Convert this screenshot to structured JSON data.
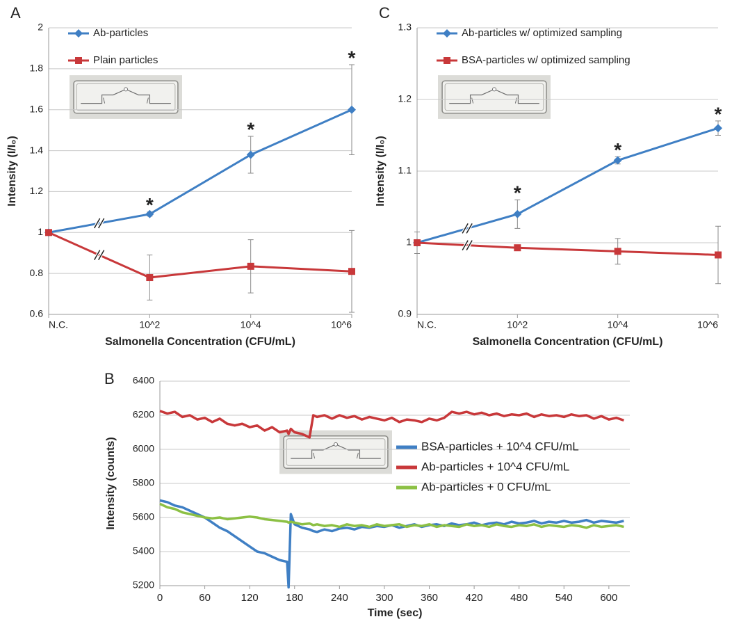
{
  "chart_data": [
    {
      "type": "line",
      "label": "A",
      "xlabel": "Salmonella Concentration (CFU/mL)",
      "ylabel": "Intensity (I/I₀)",
      "categories": [
        "N.C.",
        "10^2",
        "10^4",
        "10^6"
      ],
      "ylim": [
        0.6,
        2
      ],
      "yticks": [
        0.6,
        0.8,
        1,
        1.2,
        1.4,
        1.6,
        1.8,
        2
      ],
      "grid": true,
      "legend": "upper left",
      "series": [
        {
          "name": "Ab-particles",
          "color": "#3f7fc4",
          "marker": "diamond",
          "values": [
            1,
            1.09,
            1.38,
            1.6
          ],
          "errors": [
            null,
            0.01,
            0.09,
            0.22
          ]
        },
        {
          "name": "Plain particles",
          "color": "#c8383a",
          "marker": "square",
          "values": [
            1,
            0.78,
            0.835,
            0.81
          ],
          "errors": [
            null,
            0.11,
            0.13,
            0.2
          ]
        }
      ],
      "annotations": [
        "*",
        "*",
        "*"
      ]
    },
    {
      "type": "line",
      "label": "C",
      "xlabel": "Salmonella Concentration (CFU/mL)",
      "ylabel": "Intensity (I/I₀)",
      "categories": [
        "N.C.",
        "10^2",
        "10^4",
        "10^6"
      ],
      "ylim": [
        0.9,
        1.3
      ],
      "yticks": [
        0.9,
        1,
        1.1,
        1.2,
        1.3
      ],
      "grid": true,
      "legend": "upper left",
      "series": [
        {
          "name": "Ab-particles w/ optimized sampling",
          "color": "#3f7fc4",
          "marker": "diamond",
          "values": [
            1,
            1.04,
            1.115,
            1.16
          ],
          "errors": [
            0.015,
            0.02,
            0.005,
            0.01
          ]
        },
        {
          "name": "BSA-particles w/ optimized sampling",
          "color": "#c8383a",
          "marker": "square",
          "values": [
            1,
            0.993,
            0.988,
            0.983
          ],
          "errors": [
            0.015,
            0.003,
            0.018,
            0.04
          ]
        }
      ],
      "annotations": [
        "*",
        "*",
        "*"
      ]
    },
    {
      "type": "timeseries",
      "label": "B",
      "xlabel": "Time (sec)",
      "ylabel": "Intensity (counts)",
      "x": [
        0,
        10,
        20,
        30,
        40,
        50,
        60,
        70,
        80,
        90,
        100,
        110,
        120,
        130,
        140,
        150,
        160,
        170,
        172,
        175,
        180,
        190,
        200,
        205,
        210,
        220,
        230,
        240,
        250,
        260,
        270,
        280,
        290,
        300,
        310,
        320,
        330,
        340,
        350,
        360,
        370,
        380,
        390,
        400,
        410,
        420,
        430,
        440,
        450,
        460,
        470,
        480,
        490,
        500,
        510,
        520,
        530,
        540,
        550,
        560,
        570,
        580,
        590,
        600,
        610,
        620
      ],
      "xlim": [
        0,
        628
      ],
      "xticks": [
        0,
        60,
        120,
        180,
        240,
        300,
        360,
        420,
        480,
        540,
        600
      ],
      "ylim": [
        5200,
        6400
      ],
      "yticks": [
        5200,
        5400,
        5600,
        5800,
        6000,
        6200,
        6400
      ],
      "grid": true,
      "legend": "center right",
      "series": [
        {
          "name": "BSA-particles + 10^4 CFU/mL",
          "color": "#3f7fc4",
          "values": [
            5700,
            5690,
            5670,
            5660,
            5640,
            5620,
            5600,
            5570,
            5540,
            5520,
            5490,
            5460,
            5430,
            5400,
            5390,
            5370,
            5350,
            5340,
            5190,
            5620,
            5560,
            5540,
            5530,
            5520,
            5515,
            5530,
            5520,
            5535,
            5540,
            5530,
            5545,
            5540,
            5550,
            5545,
            5555,
            5540,
            5550,
            5560,
            5545,
            5555,
            5560,
            5550,
            5565,
            5555,
            5560,
            5570,
            5555,
            5565,
            5570,
            5560,
            5575,
            5565,
            5570,
            5580,
            5565,
            5575,
            5570,
            5580,
            5570,
            5575,
            5585,
            5570,
            5580,
            5575,
            5570,
            5580
          ]
        },
        {
          "name": "Ab-particles + 10^4 CFU/mL",
          "color": "#c8383a",
          "values": [
            6225,
            6210,
            6220,
            6190,
            6200,
            6175,
            6185,
            6160,
            6180,
            6150,
            6140,
            6150,
            6130,
            6140,
            6110,
            6130,
            6100,
            6110,
            6090,
            6120,
            6100,
            6090,
            6070,
            6200,
            6190,
            6200,
            6180,
            6200,
            6185,
            6195,
            6175,
            6190,
            6180,
            6170,
            6185,
            6160,
            6175,
            6170,
            6160,
            6180,
            6170,
            6185,
            6220,
            6210,
            6220,
            6205,
            6215,
            6200,
            6210,
            6195,
            6205,
            6200,
            6210,
            6190,
            6205,
            6195,
            6200,
            6190,
            6205,
            6195,
            6200,
            6180,
            6195,
            6175,
            6185,
            6170
          ]
        },
        {
          "name": "Ab-particles + 0 CFU/mL",
          "color": "#8cc044",
          "values": [
            5680,
            5660,
            5650,
            5630,
            5620,
            5610,
            5600,
            5595,
            5600,
            5590,
            5595,
            5600,
            5605,
            5600,
            5590,
            5585,
            5580,
            5575,
            5570,
            5575,
            5570,
            5560,
            5565,
            5555,
            5560,
            5550,
            5555,
            5545,
            5560,
            5550,
            5555,
            5545,
            5560,
            5550,
            5555,
            5560,
            5545,
            5555,
            5550,
            5560,
            5545,
            5555,
            5550,
            5545,
            5560,
            5550,
            5555,
            5545,
            5560,
            5550,
            5545,
            5555,
            5550,
            5560,
            5545,
            5555,
            5550,
            5545,
            5555,
            5550,
            5540,
            5555,
            5545,
            5550,
            5555,
            5545
          ]
        }
      ]
    }
  ]
}
